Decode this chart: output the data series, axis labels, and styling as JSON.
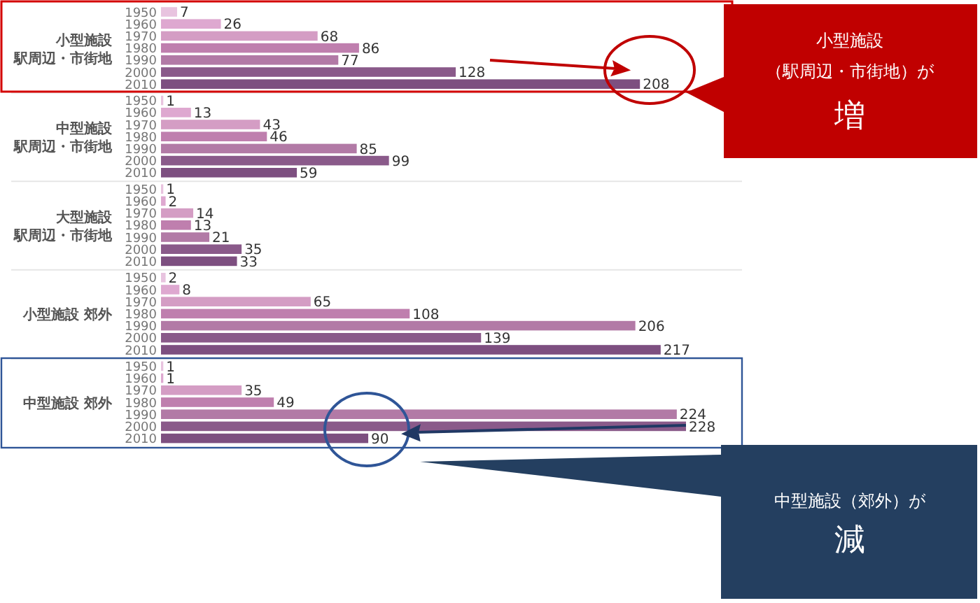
{
  "chart_data": [
    {
      "type": "bar",
      "orientation": "horizontal",
      "ylabel": "小型施設駅周辺・市街地",
      "categories": [
        "1950",
        "1960",
        "1970",
        "1980",
        "1990",
        "2000",
        "2010"
      ],
      "values": [
        7,
        26,
        68,
        86,
        77,
        128,
        208
      ],
      "colors": [
        "#e8c3df",
        "#dea8d0",
        "#d49dc4",
        "#bf7fae",
        "#b27aa6",
        "#8a5a8a",
        "#7d4f80"
      ],
      "data_labels": true,
      "annotations": [
        "小型施設",
        "（駅周辺・市街地）が",
        "増"
      ]
    },
    {
      "type": "bar",
      "orientation": "horizontal",
      "ylabel": "中型施設駅周辺・市街地",
      "categories": [
        "1950",
        "1960",
        "1970",
        "1980",
        "1990",
        "2000",
        "2010"
      ],
      "values": [
        1,
        13,
        43,
        46,
        85,
        99,
        59
      ],
      "colors": [
        "#e8c3df",
        "#dea8d0",
        "#d49dc4",
        "#bf7fae",
        "#b27aa6",
        "#8a5a8a",
        "#7d4f80"
      ],
      "data_labels": true
    },
    {
      "type": "bar",
      "orientation": "horizontal",
      "ylabel": "大型施設駅周辺・市街地",
      "categories": [
        "1950",
        "1960",
        "1970",
        "1980",
        "1990",
        "2000",
        "2010"
      ],
      "values": [
        1,
        2,
        14,
        13,
        21,
        35,
        33
      ],
      "colors": [
        "#e8c3df",
        "#dea8d0",
        "#d49dc4",
        "#bf7fae",
        "#b27aa6",
        "#8a5a8a",
        "#7d4f80"
      ],
      "data_labels": true
    },
    {
      "type": "bar",
      "orientation": "horizontal",
      "ylabel": "小型施設 郊外",
      "categories": [
        "1950",
        "1960",
        "1970",
        "1980",
        "1990",
        "2000",
        "2010"
      ],
      "values": [
        2,
        8,
        65,
        108,
        206,
        139,
        217
      ],
      "colors": [
        "#e8c3df",
        "#dea8d0",
        "#d49dc4",
        "#bf7fae",
        "#b27aa6",
        "#8a5a8a",
        "#7d4f80"
      ],
      "data_labels": true
    },
    {
      "type": "bar",
      "orientation": "horizontal",
      "ylabel": "中型施設 郊外",
      "categories": [
        "1950",
        "1960",
        "1970",
        "1980",
        "1990",
        "2000",
        "2010"
      ],
      "values": [
        1,
        1,
        35,
        49,
        224,
        228,
        90
      ],
      "colors": [
        "#e8c3df",
        "#dea8d0",
        "#d49dc4",
        "#bf7fae",
        "#b27aa6",
        "#8a5a8a",
        "#7d4f80"
      ],
      "data_labels": true,
      "annotations": [
        "中型施設（郊外）が",
        "減"
      ]
    }
  ]
}
